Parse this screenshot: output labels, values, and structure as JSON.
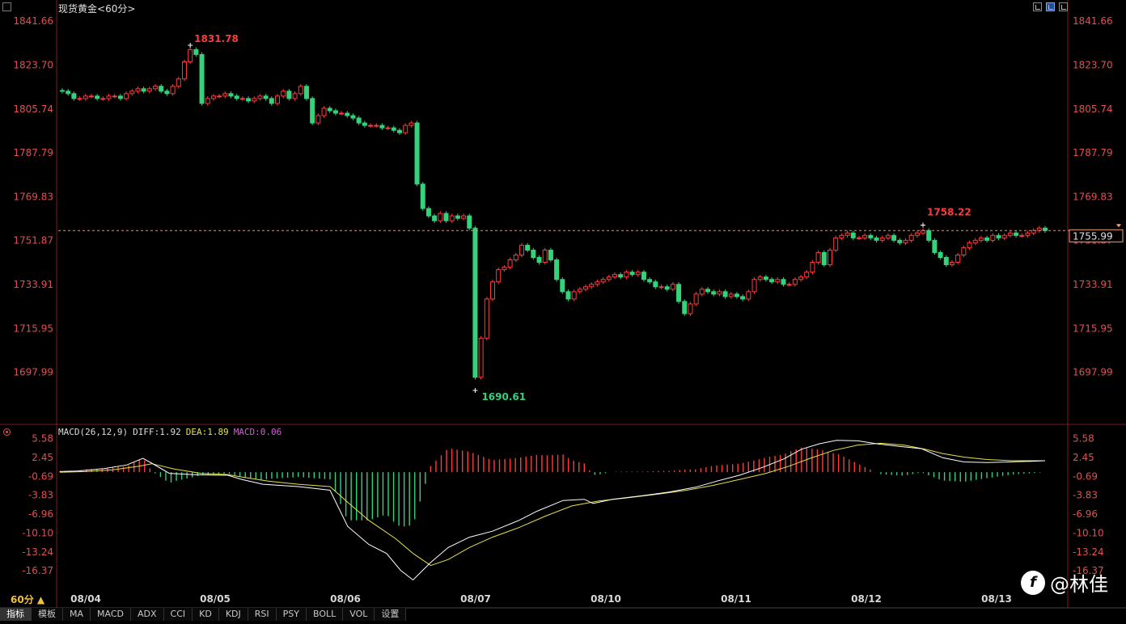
{
  "header": {
    "title": "现货黄金",
    "period_tag": "<60分>"
  },
  "macd_header": {
    "name": "MACD(26,12,9)",
    "diff": "DIFF:1.92",
    "dea": "DEA:1.89",
    "macd": "MACD:0.06"
  },
  "colors": {
    "up": "#ff3b3b",
    "down": "#34d27a",
    "diff_line": "#ffffff",
    "dea_line": "#e8e04a",
    "axis_label": "#e05050",
    "dash_line": "#ff8a5a",
    "macd_text": "#d060d0",
    "dea_text": "#e8e04a"
  },
  "chart_data": [
    {
      "type": "candlestick",
      "title": "现货黄金<60分>",
      "ylim": [
        1685,
        1845
      ],
      "y_ticks": [
        "1841.66",
        "1823.70",
        "1805.74",
        "1787.79",
        "1769.83",
        "1751.87",
        "1733.91",
        "1715.95",
        "1697.99"
      ],
      "x_labels": [
        "08/04",
        "08/05",
        "08/06",
        "08/07",
        "08/10",
        "08/11",
        "08/12",
        "08/13"
      ],
      "annotations": [
        {
          "label": "1831.78",
          "value": 1831.78
        },
        {
          "label": "1690.61",
          "value": 1690.61
        },
        {
          "label": "1758.22",
          "value": 1758.22
        }
      ],
      "current_price": {
        "label": "1755.99",
        "value": 1755.99
      },
      "series": [
        {
          "close": [
            1813,
            1812,
            1810,
            1810,
            1811,
            1811,
            1810,
            1810,
            1811,
            1811,
            1810,
            1812,
            1813,
            1814,
            1813,
            1814,
            1815,
            1813,
            1812,
            1815,
            1818,
            1825,
            1830,
            1828,
            1808,
            1810,
            1811,
            1811,
            1812,
            1811,
            1810,
            1810,
            1809,
            1810,
            1811,
            1810,
            1808,
            1811,
            1813,
            1810,
            1812,
            1815,
            1810,
            1800,
            1803,
            1806,
            1805,
            1804,
            1804,
            1803,
            1802,
            1800,
            1799,
            1799,
            1799,
            1798,
            1798,
            1797,
            1796,
            1799,
            1800,
            1775,
            1765,
            1762,
            1760,
            1763,
            1760,
            1762,
            1761,
            1762,
            1757,
            1696,
            1712,
            1728,
            1735,
            1740,
            1741,
            1744,
            1746,
            1750,
            1748,
            1745,
            1743,
            1748,
            1744,
            1736,
            1731,
            1728,
            1731,
            1732,
            1733,
            1734,
            1735,
            1736,
            1737,
            1738,
            1737,
            1739,
            1738,
            1739,
            1736,
            1735,
            1733,
            1733,
            1732,
            1734,
            1727,
            1722,
            1726,
            1730,
            1732,
            1731,
            1730,
            1731,
            1729,
            1730,
            1729,
            1728,
            1731,
            1736,
            1737,
            1736,
            1735,
            1736,
            1734,
            1734,
            1736,
            1737,
            1739,
            1743,
            1747,
            1742,
            1748,
            1753,
            1754,
            1755,
            1753,
            1753,
            1754,
            1753,
            1752,
            1753,
            1754,
            1752,
            1751,
            1752,
            1754,
            1755,
            1756,
            1752,
            1747,
            1745,
            1742,
            1743,
            1746,
            1749,
            1751,
            1752,
            1753,
            1752,
            1754,
            1753,
            1754,
            1755,
            1754,
            1754,
            1755,
            1756,
            1757,
            1756
          ]
        }
      ]
    },
    {
      "type": "macd",
      "legend": [
        "DIFF:1.92",
        "DEA:1.89",
        "MACD:0.06"
      ],
      "ylim": [
        -18.5,
        7
      ],
      "y_ticks": [
        "5.58",
        "2.45",
        "-0.69",
        "-3.83",
        "-6.96",
        "-10.10",
        "-13.24",
        "-16.37"
      ],
      "diff_path": [
        [
          0,
          0.1
        ],
        [
          10,
          0.2
        ],
        [
          25,
          0.6
        ],
        [
          38,
          1.2
        ],
        [
          47,
          2.3
        ],
        [
          52,
          1.5
        ],
        [
          62,
          -0.2
        ],
        [
          75,
          -0.4
        ],
        [
          88,
          -0.5
        ],
        [
          95,
          -0.5
        ],
        [
          103,
          -1.2
        ],
        [
          115,
          -2.0
        ],
        [
          135,
          -2.4
        ],
        [
          153,
          -3.0
        ],
        [
          163,
          -9.0
        ],
        [
          175,
          -12.0
        ],
        [
          185,
          -13.5
        ],
        [
          193,
          -16.3
        ],
        [
          200,
          -17.9
        ],
        [
          210,
          -15.0
        ],
        [
          220,
          -12.5
        ],
        [
          232,
          -10.8
        ],
        [
          245,
          -9.8
        ],
        [
          260,
          -8.0
        ],
        [
          270,
          -6.5
        ],
        [
          285,
          -4.7
        ],
        [
          297,
          -4.5
        ],
        [
          302,
          -5.2
        ],
        [
          313,
          -4.5
        ],
        [
          330,
          -3.9
        ],
        [
          345,
          -3.3
        ],
        [
          360,
          -2.5
        ],
        [
          372,
          -1.5
        ],
        [
          385,
          -0.5
        ],
        [
          398,
          0.8
        ],
        [
          410,
          2.2
        ],
        [
          420,
          3.8
        ],
        [
          430,
          4.7
        ],
        [
          440,
          5.3
        ],
        [
          452,
          5.2
        ],
        [
          463,
          4.7
        ],
        [
          475,
          4.3
        ],
        [
          488,
          3.9
        ],
        [
          500,
          2.4
        ],
        [
          512,
          1.7
        ],
        [
          525,
          1.6
        ],
        [
          538,
          1.7
        ],
        [
          550,
          1.8
        ],
        [
          558,
          1.9
        ]
      ],
      "dea_path": [
        [
          0,
          0.0
        ],
        [
          15,
          0.1
        ],
        [
          30,
          0.4
        ],
        [
          45,
          1.0
        ],
        [
          52,
          1.4
        ],
        [
          65,
          0.5
        ],
        [
          80,
          -0.2
        ],
        [
          95,
          -0.4
        ],
        [
          103,
          -0.8
        ],
        [
          118,
          -1.5
        ],
        [
          135,
          -2.0
        ],
        [
          153,
          -2.4
        ],
        [
          163,
          -5.0
        ],
        [
          175,
          -8.0
        ],
        [
          190,
          -11.0
        ],
        [
          200,
          -13.5
        ],
        [
          210,
          -15.5
        ],
        [
          220,
          -14.5
        ],
        [
          232,
          -12.5
        ],
        [
          245,
          -10.8
        ],
        [
          260,
          -9.2
        ],
        [
          275,
          -7.3
        ],
        [
          290,
          -5.6
        ],
        [
          305,
          -4.8
        ],
        [
          320,
          -4.3
        ],
        [
          340,
          -3.6
        ],
        [
          355,
          -3.0
        ],
        [
          370,
          -2.2
        ],
        [
          385,
          -1.2
        ],
        [
          400,
          -0.2
        ],
        [
          413,
          1.0
        ],
        [
          425,
          2.3
        ],
        [
          438,
          3.6
        ],
        [
          452,
          4.5
        ],
        [
          465,
          4.8
        ],
        [
          478,
          4.5
        ],
        [
          490,
          3.8
        ],
        [
          500,
          3.1
        ],
        [
          512,
          2.5
        ],
        [
          525,
          2.1
        ],
        [
          540,
          1.9
        ],
        [
          558,
          1.9
        ]
      ]
    }
  ],
  "bottom_bar": {
    "period_label": "60分 ▲",
    "tabs": [
      "指标",
      "模板",
      "MA",
      "MACD",
      "ADX",
      "CCI",
      "KD",
      "KDJ",
      "RSI",
      "PSY",
      "BOLL",
      "VOL",
      "设置"
    ]
  },
  "watermark": {
    "logo": "f",
    "text": "@林佳"
  }
}
